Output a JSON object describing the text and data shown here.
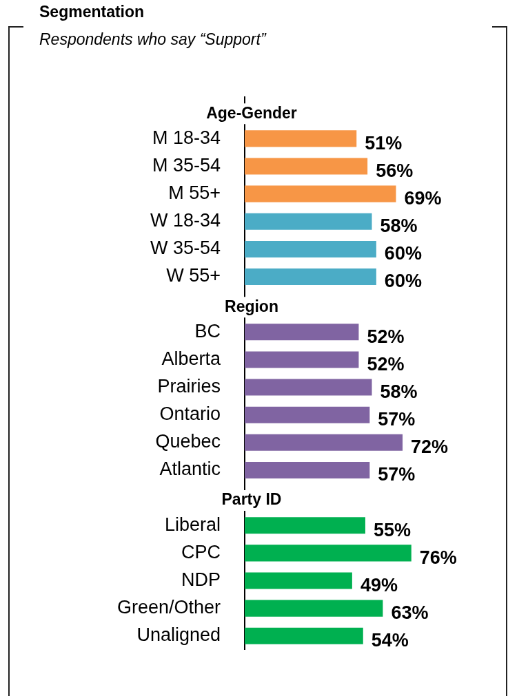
{
  "chart_data": {
    "type": "bar",
    "orientation": "horizontal",
    "title": "Segmentation",
    "subtitle": "Respondents who say “Support”",
    "categories": [
      "Age-Gender",
      "M 18-34",
      "M 35-54",
      "M 55+",
      "W 18-34",
      "W 35-54",
      "W 55+",
      "Region",
      "BC",
      "Alberta",
      "Prairies",
      "Ontario",
      "Quebec",
      "Atlantic",
      "Party ID",
      "Liberal",
      "CPC",
      "NDP",
      "Green/Other",
      "Unaligned"
    ],
    "values": [
      null,
      51,
      56,
      69,
      58,
      60,
      60,
      null,
      52,
      52,
      58,
      57,
      72,
      57,
      null,
      55,
      76,
      49,
      63,
      54
    ],
    "value_labels": [
      null,
      "51%",
      "56%",
      "69%",
      "58%",
      "60%",
      "60%",
      null,
      "52%",
      "52%",
      "58%",
      "57%",
      "72%",
      "57%",
      null,
      "55%",
      "76%",
      "49%",
      "63%",
      "54%"
    ],
    "colors": [
      null,
      "#f79646",
      "#f79646",
      "#f79646",
      "#4bacc6",
      "#4bacc6",
      "#4bacc6",
      null,
      "#8064a2",
      "#8064a2",
      "#8064a2",
      "#8064a2",
      "#8064a2",
      "#8064a2",
      null,
      "#00b050",
      "#00b050",
      "#00b050",
      "#00b050",
      "#00b050"
    ],
    "legend": false,
    "grid": false
  }
}
